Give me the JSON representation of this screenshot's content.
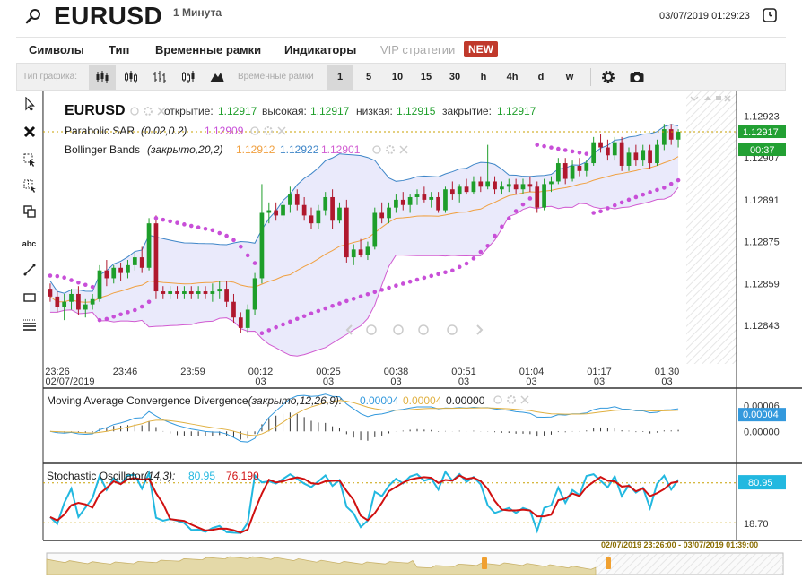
{
  "header": {
    "symbol": "EURUSD",
    "timeframe": "1 Минута",
    "datetime": "03/07/2019 01:29:23"
  },
  "menu": {
    "items": [
      "Символы",
      "Тип",
      "Временные рамки",
      "Индикаторы",
      "VIP стратегии"
    ],
    "badge": "NEW"
  },
  "toolbar": {
    "chart_type_label": "Тип графика:",
    "timeframes_label": "Временные рамки",
    "timeframes": [
      "1",
      "5",
      "10",
      "15",
      "30",
      "h",
      "4h",
      "d",
      "w"
    ],
    "active_timeframe": "1"
  },
  "tools": {
    "text_tool_label": "abc"
  },
  "colors": {
    "bull": "#1e9e2a",
    "bear": "#b0182e",
    "sar": "#c84fd8",
    "bb_band": "#d15bd1",
    "bb_upper": "#3f86c8",
    "bb_mid": "#f0a040",
    "macd_line": "#3399dd",
    "macd_signal": "#e0b040",
    "stoch_k": "#22b8e0",
    "stoch_d": "#d01010",
    "last_price_bg": "#22a033",
    "timer_bg": "#22a033",
    "macd_value_bg": "#3399dd",
    "stoch_value_bg": "#22b8e0"
  },
  "main_legend": {
    "symbol": "EURUSD",
    "open_label": "открытие:",
    "open": "1.12917",
    "high_label": "высокая:",
    "high": "1.12917",
    "low_label": "низкая:",
    "low": "1.12915",
    "close_label": "закрытие:",
    "close": "1.12917",
    "sar_label": "Parabolic SAR",
    "sar_params": "(0.02,0.2)",
    "sar_value": "1.12909",
    "bb_label": "Bollinger Bands",
    "bb_params": "(закрыто,20,2)",
    "bb_mid": "1.12912",
    "bb_upper": "1.12922",
    "bb_lower": "1.12901"
  },
  "price_axis": {
    "ticks": [
      "1.12923",
      "1.12907",
      "1.12891",
      "1.12875",
      "1.12859",
      "1.12843"
    ],
    "last_price": "1.12917",
    "timer": "00:37"
  },
  "time_axis": {
    "labels": [
      {
        "time": "23:26",
        "date": "02/07/2019"
      },
      {
        "time": "23:46",
        "date": ""
      },
      {
        "time": "23:59",
        "date": ""
      },
      {
        "time": "00:12",
        "date": "03"
      },
      {
        "time": "00:25",
        "date": "03"
      },
      {
        "time": "00:38",
        "date": "03"
      },
      {
        "time": "00:51",
        "date": "03"
      },
      {
        "time": "01:04",
        "date": "03"
      },
      {
        "time": "01:17",
        "date": "03"
      },
      {
        "time": "01:30",
        "date": "03"
      }
    ]
  },
  "macd": {
    "label": "Moving Average Convergence Divergence",
    "params": "(закрыто,12,26,9):",
    "value1": "0.00004",
    "value2": "0.00004",
    "value3": "0.00000",
    "axis": [
      "0.00006",
      "0.00004",
      "0.00000"
    ],
    "current": "0.00004"
  },
  "stoch": {
    "label": "Stochastic Oscillator",
    "params": "(14,3):",
    "k": "80.95",
    "d": "76.190",
    "axis_low": "18.70",
    "current": "80.95"
  },
  "navigator": {
    "range": "02/07/2019 23:26:00 - 03/07/2019 01:39:00"
  },
  "chart_data": {
    "type": "candlestick",
    "title": "EURUSD",
    "price_range": [
      1.12831,
      1.12929
    ],
    "candles": [
      [
        1.12857,
        1.12859,
        1.12852,
        1.12854
      ],
      [
        1.12854,
        1.12856,
        1.12848,
        1.1285
      ],
      [
        1.1285,
        1.12855,
        1.12845,
        1.12852
      ],
      [
        1.12852,
        1.12857,
        1.12849,
        1.12855
      ],
      [
        1.12855,
        1.12858,
        1.12847,
        1.12849
      ],
      [
        1.12849,
        1.12853,
        1.12846,
        1.12851
      ],
      [
        1.12851,
        1.12855,
        1.12849,
        1.12853
      ],
      [
        1.12853,
        1.12866,
        1.12852,
        1.12864
      ],
      [
        1.12864,
        1.12868,
        1.12858,
        1.12861
      ],
      [
        1.12861,
        1.12866,
        1.12859,
        1.12865
      ],
      [
        1.12865,
        1.12867,
        1.1286,
        1.12863
      ],
      [
        1.12863,
        1.12868,
        1.12861,
        1.12866
      ],
      [
        1.12866,
        1.12871,
        1.12864,
        1.12869
      ],
      [
        1.12869,
        1.12873,
        1.12863,
        1.12865
      ],
      [
        1.12865,
        1.12884,
        1.12864,
        1.12882
      ],
      [
        1.12882,
        1.12885,
        1.12853,
        1.12856
      ],
      [
        1.12856,
        1.12858,
        1.12853,
        1.12855
      ],
      [
        1.12855,
        1.12858,
        1.12853,
        1.12856
      ],
      [
        1.12856,
        1.12858,
        1.12853,
        1.12855
      ],
      [
        1.12855,
        1.12858,
        1.12853,
        1.12856
      ],
      [
        1.12856,
        1.12858,
        1.12853,
        1.12855
      ],
      [
        1.12855,
        1.12858,
        1.12853,
        1.12856
      ],
      [
        1.12856,
        1.12858,
        1.12853,
        1.12855
      ],
      [
        1.12855,
        1.12859,
        1.12852,
        1.12856
      ],
      [
        1.12856,
        1.1286,
        1.12853,
        1.12857
      ],
      [
        1.12857,
        1.1286,
        1.1285,
        1.12852
      ],
      [
        1.12852,
        1.12855,
        1.12844,
        1.12846
      ],
      [
        1.12846,
        1.12848,
        1.1284,
        1.12842
      ],
      [
        1.12842,
        1.12851,
        1.1284,
        1.12849
      ],
      [
        1.12849,
        1.12863,
        1.12847,
        1.12861
      ],
      [
        1.12861,
        1.12897,
        1.12859,
        1.12886
      ],
      [
        1.12886,
        1.1289,
        1.12882,
        1.12887
      ],
      [
        1.12887,
        1.1289,
        1.12883,
        1.12885
      ],
      [
        1.12885,
        1.12891,
        1.12883,
        1.12889
      ],
      [
        1.12889,
        1.12896,
        1.12886,
        1.12893
      ],
      [
        1.12893,
        1.12895,
        1.12887,
        1.12889
      ],
      [
        1.12889,
        1.12892,
        1.12883,
        1.12885
      ],
      [
        1.12885,
        1.12888,
        1.1288,
        1.12882
      ],
      [
        1.12882,
        1.12889,
        1.1288,
        1.12887
      ],
      [
        1.12887,
        1.12894,
        1.12885,
        1.12892
      ],
      [
        1.12892,
        1.12895,
        1.1288,
        1.12883
      ],
      [
        1.12883,
        1.1289,
        1.12882,
        1.12888
      ],
      [
        1.12888,
        1.12891,
        1.12867,
        1.12869
      ],
      [
        1.12869,
        1.12874,
        1.12866,
        1.12872
      ],
      [
        1.12872,
        1.12876,
        1.12869,
        1.1287
      ],
      [
        1.1287,
        1.12875,
        1.12868,
        1.12873
      ],
      [
        1.12873,
        1.12888,
        1.12872,
        1.12886
      ],
      [
        1.12886,
        1.1289,
        1.12882,
        1.12884
      ],
      [
        1.12884,
        1.1289,
        1.12882,
        1.12888
      ],
      [
        1.12888,
        1.12893,
        1.12886,
        1.12891
      ],
      [
        1.12891,
        1.12894,
        1.12887,
        1.12889
      ],
      [
        1.12889,
        1.12893,
        1.12886,
        1.12892
      ],
      [
        1.12892,
        1.12895,
        1.12889,
        1.12893
      ],
      [
        1.12893,
        1.12896,
        1.1289,
        1.12891
      ],
      [
        1.12891,
        1.12894,
        1.12888,
        1.12892
      ],
      [
        1.12892,
        1.12894,
        1.12886,
        1.12887
      ],
      [
        1.12887,
        1.12896,
        1.12886,
        1.12895
      ],
      [
        1.12895,
        1.12898,
        1.12891,
        1.12893
      ],
      [
        1.12893,
        1.12897,
        1.1289,
        1.12896
      ],
      [
        1.12896,
        1.12899,
        1.12893,
        1.12894
      ],
      [
        1.12894,
        1.129,
        1.12893,
        1.12898
      ],
      [
        1.12898,
        1.129,
        1.12894,
        1.12896
      ],
      [
        1.12896,
        1.12912,
        1.12895,
        1.12898
      ],
      [
        1.12898,
        1.129,
        1.12893,
        1.12895
      ],
      [
        1.12895,
        1.12898,
        1.12893,
        1.12896
      ],
      [
        1.12896,
        1.12899,
        1.12894,
        1.12897
      ],
      [
        1.12897,
        1.12899,
        1.12893,
        1.12895
      ],
      [
        1.12895,
        1.12899,
        1.12893,
        1.12897
      ],
      [
        1.12897,
        1.129,
        1.12894,
        1.12896
      ],
      [
        1.12896,
        1.12898,
        1.12886,
        1.12888
      ],
      [
        1.12888,
        1.12899,
        1.12887,
        1.12897
      ],
      [
        1.12897,
        1.129,
        1.12894,
        1.12898
      ],
      [
        1.12898,
        1.12907,
        1.12897,
        1.12905
      ],
      [
        1.12905,
        1.12907,
        1.12897,
        1.12899
      ],
      [
        1.12899,
        1.12906,
        1.12898,
        1.12904
      ],
      [
        1.12904,
        1.12907,
        1.129,
        1.12902
      ],
      [
        1.12902,
        1.12906,
        1.129,
        1.12905
      ],
      [
        1.12905,
        1.12915,
        1.12904,
        1.12913
      ],
      [
        1.12913,
        1.12916,
        1.12909,
        1.12911
      ],
      [
        1.12911,
        1.12914,
        1.12906,
        1.12908
      ],
      [
        1.12908,
        1.12915,
        1.12906,
        1.12913
      ],
      [
        1.12913,
        1.12915,
        1.12902,
        1.12904
      ],
      [
        1.12904,
        1.12911,
        1.12902,
        1.12909
      ],
      [
        1.12909,
        1.12912,
        1.12904,
        1.12906
      ],
      [
        1.12906,
        1.12912,
        1.12904,
        1.1291
      ],
      [
        1.1291,
        1.12912,
        1.12903,
        1.12905
      ],
      [
        1.12905,
        1.12914,
        1.12904,
        1.12912
      ],
      [
        1.12912,
        1.1292,
        1.1291,
        1.12918
      ],
      [
        1.12918,
        1.1292,
        1.12912,
        1.12914
      ],
      [
        1.12914,
        1.12918,
        1.12911,
        1.12917
      ]
    ]
  }
}
